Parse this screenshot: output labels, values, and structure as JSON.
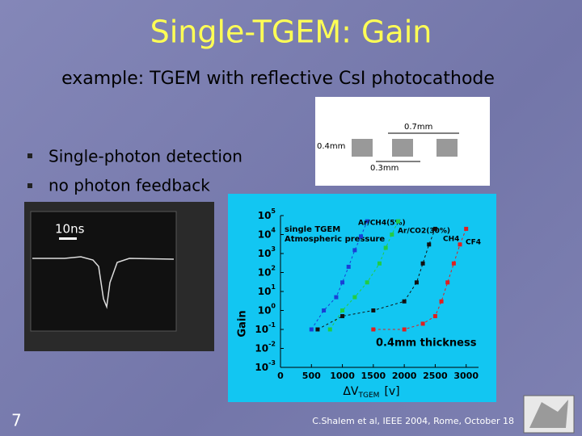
{
  "slide": {
    "title": "Single-TGEM: Gain",
    "subtitle": "example: TGEM with reflective CsI photocathode",
    "bullets": [
      "Single-photon detection",
      "no photon feedback"
    ],
    "scope_label": "10ns",
    "diagram": {
      "labels": [
        "0.7mm",
        "0.4mm",
        "0.3mm"
      ]
    },
    "slide_number": "7",
    "footer": "C.Shalem et al, IEEE 2004, Rome, October 18"
  },
  "chart_data": {
    "type": "scatter",
    "y_label": "Gain",
    "x_label": "ΔV",
    "x_label_sub": "TGEM",
    "x_label_unit": "[v]",
    "annotations": [
      "single TGEM",
      "Atmospheric pressure",
      "0.4mm thickness"
    ],
    "log_y": true,
    "xlim": [
      0,
      3200
    ],
    "xticks": [
      0,
      500,
      1000,
      1500,
      2000,
      2500,
      3000
    ],
    "ylim": [
      0.001,
      100000
    ],
    "yticks": [
      {
        "value": 0.001,
        "label": "10^-3"
      },
      {
        "value": 0.01,
        "label": "10^-2"
      },
      {
        "value": 0.1,
        "label": "10^-1"
      },
      {
        "value": 1,
        "label": "10^0"
      },
      {
        "value": 10,
        "label": "10^1"
      },
      {
        "value": 100,
        "label": "10^2"
      },
      {
        "value": 1000,
        "label": "10^3"
      },
      {
        "value": 10000,
        "label": "10^4"
      },
      {
        "value": 100000,
        "label": "10^5"
      }
    ],
    "series": [
      {
        "name": "Ar/CH4(5%)",
        "color": "#1a3fd6",
        "x": [
          500,
          700,
          900,
          1000,
          1100,
          1200,
          1300,
          1400
        ],
        "values": [
          0.1,
          1,
          5,
          30,
          200,
          1500,
          8000,
          50000
        ]
      },
      {
        "name": "Ar/CO2(30%)",
        "color": "#22cc44",
        "x": [
          800,
          1000,
          1200,
          1400,
          1600,
          1700,
          1800,
          1900
        ],
        "values": [
          0.1,
          1,
          5,
          30,
          300,
          2000,
          10000,
          50000
        ]
      },
      {
        "name": "CH4",
        "color": "#111111",
        "x": [
          600,
          1000,
          1500,
          2000,
          2200,
          2300,
          2400,
          2500
        ],
        "values": [
          0.1,
          0.5,
          1,
          3,
          30,
          300,
          3000,
          20000
        ]
      },
      {
        "name": "CF4",
        "color": "#e02020",
        "x": [
          1500,
          2000,
          2300,
          2500,
          2600,
          2700,
          2800,
          2900,
          3000
        ],
        "values": [
          0.1,
          0.1,
          0.2,
          0.5,
          3,
          30,
          300,
          3000,
          20000
        ]
      }
    ]
  }
}
